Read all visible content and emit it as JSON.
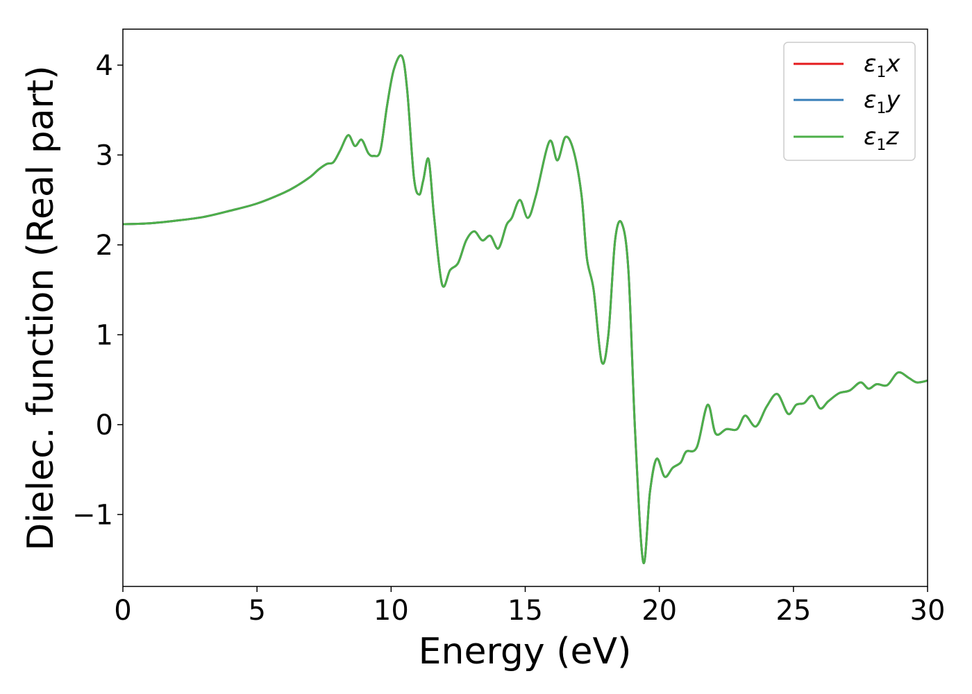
{
  "chart_data": {
    "type": "line",
    "xlabel": "Energy (eV)",
    "ylabel": "Dielec. function (Real part)",
    "xlim": [
      0,
      30
    ],
    "ylim": [
      -1.8,
      4.4
    ],
    "grid": false,
    "legend_position": "top-right",
    "x_ticks": [
      0,
      5,
      10,
      15,
      20,
      25,
      30
    ],
    "y_ticks": [
      -1,
      0,
      1,
      2,
      3,
      4
    ],
    "x_tick_labels": [
      "0",
      "5",
      "10",
      "15",
      "20",
      "25",
      "30"
    ],
    "y_tick_labels": [
      "−1",
      "0",
      "1",
      "2",
      "3",
      "4"
    ],
    "x": [
      0,
      1,
      2,
      3,
      4,
      5,
      6,
      6.5,
      7,
      7.3,
      7.6,
      7.85,
      8.1,
      8.4,
      8.65,
      8.9,
      9.15,
      9.35,
      9.6,
      9.85,
      10.1,
      10.4,
      10.6,
      10.85,
      11.05,
      11.2,
      11.4,
      11.6,
      11.9,
      12.2,
      12.5,
      12.8,
      13.1,
      13.4,
      13.7,
      14.0,
      14.3,
      14.5,
      14.8,
      15.1,
      15.4,
      15.9,
      16.2,
      16.5,
      16.8,
      17.1,
      17.3,
      17.55,
      17.85,
      18.1,
      18.35,
      18.6,
      18.85,
      19.1,
      19.4,
      19.65,
      19.9,
      20.2,
      20.5,
      20.8,
      21.0,
      21.4,
      21.8,
      22.1,
      22.5,
      22.9,
      23.2,
      23.6,
      24.0,
      24.4,
      24.8,
      25.1,
      25.4,
      25.7,
      26.0,
      26.3,
      26.7,
      27.1,
      27.5,
      27.8,
      28.1,
      28.5,
      28.9,
      29.3,
      29.6,
      30.0
    ],
    "series": [
      {
        "name": "ε1x",
        "color": "#e41a1c",
        "values": [
          2.23,
          2.24,
          2.27,
          2.31,
          2.38,
          2.46,
          2.58,
          2.66,
          2.76,
          2.84,
          2.9,
          2.92,
          3.05,
          3.22,
          3.1,
          3.17,
          3.02,
          2.99,
          3.05,
          3.55,
          3.95,
          4.1,
          3.72,
          2.75,
          2.56,
          2.72,
          2.95,
          2.32,
          1.56,
          1.72,
          1.8,
          2.05,
          2.15,
          2.05,
          2.1,
          1.96,
          2.22,
          2.3,
          2.5,
          2.3,
          2.55,
          3.15,
          2.94,
          3.2,
          3.05,
          2.55,
          1.85,
          1.5,
          0.7,
          1.0,
          2.05,
          2.24,
          1.7,
          -0.1,
          -1.53,
          -0.75,
          -0.38,
          -0.58,
          -0.48,
          -0.42,
          -0.3,
          -0.25,
          0.22,
          -0.1,
          -0.05,
          -0.05,
          0.1,
          -0.02,
          0.2,
          0.34,
          0.12,
          0.22,
          0.24,
          0.32,
          0.18,
          0.26,
          0.35,
          0.38,
          0.47,
          0.4,
          0.45,
          0.44,
          0.58,
          0.52,
          0.47,
          0.49
        ]
      },
      {
        "name": "ε1y",
        "color": "#377eb8",
        "values": [
          2.23,
          2.24,
          2.27,
          2.31,
          2.38,
          2.46,
          2.58,
          2.66,
          2.76,
          2.84,
          2.9,
          2.92,
          3.05,
          3.22,
          3.1,
          3.17,
          3.02,
          2.99,
          3.05,
          3.55,
          3.95,
          4.1,
          3.72,
          2.75,
          2.56,
          2.72,
          2.95,
          2.32,
          1.56,
          1.72,
          1.8,
          2.05,
          2.15,
          2.05,
          2.1,
          1.96,
          2.22,
          2.3,
          2.5,
          2.3,
          2.55,
          3.15,
          2.94,
          3.2,
          3.05,
          2.55,
          1.85,
          1.5,
          0.7,
          1.0,
          2.05,
          2.24,
          1.7,
          -0.1,
          -1.53,
          -0.75,
          -0.38,
          -0.58,
          -0.48,
          -0.42,
          -0.3,
          -0.25,
          0.22,
          -0.1,
          -0.05,
          -0.05,
          0.1,
          -0.02,
          0.2,
          0.34,
          0.12,
          0.22,
          0.24,
          0.32,
          0.18,
          0.26,
          0.35,
          0.38,
          0.47,
          0.4,
          0.45,
          0.44,
          0.58,
          0.52,
          0.47,
          0.49
        ]
      },
      {
        "name": "ε1z",
        "color": "#4daf4a",
        "values": [
          2.23,
          2.24,
          2.27,
          2.31,
          2.38,
          2.46,
          2.58,
          2.66,
          2.76,
          2.84,
          2.9,
          2.92,
          3.05,
          3.22,
          3.1,
          3.17,
          3.02,
          2.99,
          3.05,
          3.55,
          3.95,
          4.1,
          3.72,
          2.75,
          2.56,
          2.72,
          2.95,
          2.32,
          1.56,
          1.72,
          1.8,
          2.05,
          2.15,
          2.05,
          2.1,
          1.96,
          2.22,
          2.3,
          2.5,
          2.3,
          2.55,
          3.15,
          2.94,
          3.2,
          3.05,
          2.55,
          1.85,
          1.5,
          0.7,
          1.0,
          2.05,
          2.24,
          1.7,
          -0.1,
          -1.53,
          -0.75,
          -0.38,
          -0.58,
          -0.48,
          -0.42,
          -0.3,
          -0.25,
          0.22,
          -0.1,
          -0.05,
          -0.05,
          0.1,
          -0.02,
          0.2,
          0.34,
          0.12,
          0.22,
          0.24,
          0.32,
          0.18,
          0.26,
          0.35,
          0.38,
          0.47,
          0.4,
          0.45,
          0.44,
          0.58,
          0.52,
          0.47,
          0.49
        ]
      }
    ]
  },
  "legend": {
    "entries": [
      {
        "symbol": "ε",
        "sub": "1",
        "axis": "x"
      },
      {
        "symbol": "ε",
        "sub": "1",
        "axis": "y"
      },
      {
        "symbol": "ε",
        "sub": "1",
        "axis": "z"
      }
    ]
  }
}
